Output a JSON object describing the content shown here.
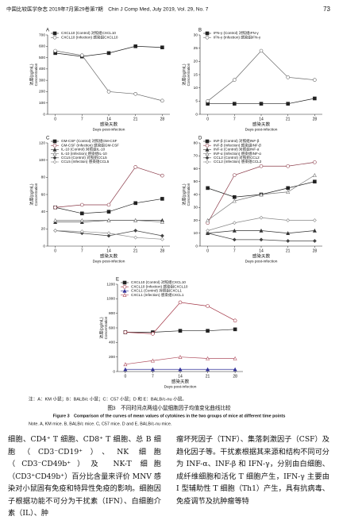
{
  "header": {
    "journal": "中国比较医学杂志 2019年7月第29卷第7期　Chin J Comp Med, July 2019, Vol. 29, No. 7",
    "page": "73"
  },
  "chart_data": [
    {
      "type": "line",
      "label": "A",
      "ylabel": "浓度(pg/mL)",
      "ylabel_en": "Concentration",
      "xlabel": "感染天数",
      "xlabel_en": "Days post-infection",
      "legend": "upper left",
      "x": [
        0,
        7,
        14,
        21,
        28
      ],
      "xlim": [
        -2,
        30
      ],
      "xticks": [
        0,
        7,
        14,
        21,
        28
      ],
      "ylim": [
        0,
        700
      ],
      "yticks": [
        0,
        100,
        200,
        300,
        400,
        500,
        600,
        700
      ],
      "series": [
        {
          "name": "CXCL10 (Control) 对照组CXCL10",
          "color": "#222222",
          "marker": "square",
          "values": [
            540,
            510,
            540,
            600,
            590
          ]
        },
        {
          "name": "CXCL10 (Infection) 感染组CXCL10",
          "color": "#666666",
          "marker": "circle-open",
          "values": [
            560,
            520,
            200,
            180,
            120
          ]
        }
      ]
    },
    {
      "type": "line",
      "label": "B",
      "ylabel": "浓度(pg/mL)",
      "ylabel_en": "Concentration",
      "xlabel": "感染天数",
      "xlabel_en": "Days post-infection",
      "legend": "upper left",
      "x": [
        0,
        7,
        14,
        21,
        28
      ],
      "xlim": [
        -2,
        30
      ],
      "xticks": [
        0,
        7,
        14,
        21,
        28
      ],
      "ylim": [
        0,
        30
      ],
      "yticks": [
        0,
        5,
        10,
        15,
        20,
        25,
        30
      ],
      "series": [
        {
          "name": "IFN-γ (Control) 对照组IFN-γ",
          "color": "#222222",
          "marker": "square",
          "values": [
            4,
            4,
            4,
            4,
            6
          ]
        },
        {
          "name": "IFN-γ (Infection) 感染组IFN-γ",
          "color": "#666666",
          "marker": "circle-open",
          "values": [
            5,
            13,
            24,
            14,
            13
          ]
        }
      ]
    },
    {
      "type": "line",
      "label": "C",
      "ylabel": "浓度(pg/mL)",
      "ylabel_en": "Concentration",
      "xlabel": "感染天数",
      "xlabel_en": "Days post-infection",
      "legend": "upper left",
      "x": [
        0,
        7,
        14,
        21,
        28
      ],
      "xlim": [
        -2,
        30
      ],
      "xticks": [
        0,
        7,
        14,
        21,
        28
      ],
      "ylim": [
        0,
        120
      ],
      "yticks": [
        0,
        20,
        40,
        60,
        80,
        100,
        120
      ],
      "series": [
        {
          "name": "GM-CSF (Control) 对照组GM-CSF",
          "color": "#222222",
          "marker": "square",
          "values": [
            45,
            38,
            40,
            50,
            55
          ]
        },
        {
          "name": "GM-CSF (Infection) 感染组GM-CSF",
          "color": "#8a3a48",
          "marker": "circle-open",
          "values": [
            45,
            48,
            48,
            92,
            82
          ]
        },
        {
          "name": "IL-10 (Control) 对照组IL-10",
          "color": "#333333",
          "marker": "triangle",
          "values": [
            28,
            28,
            30,
            30,
            30
          ]
        },
        {
          "name": "IL-10 (Infection) 感染组IL-10",
          "color": "#777777",
          "marker": "triangle-open",
          "values": [
            30,
            30,
            30,
            30,
            28
          ]
        },
        {
          "name": "CCL5 (Control) 对照组CCL5",
          "color": "#444444",
          "marker": "diamond",
          "values": [
            18,
            15,
            12,
            18,
            12
          ]
        },
        {
          "name": "CCL5 (Infection) 感染组CCL5",
          "color": "#888888",
          "marker": "diamond-open",
          "values": [
            18,
            17,
            15,
            10,
            8
          ]
        }
      ]
    },
    {
      "type": "line",
      "label": "D",
      "ylabel": "浓度(pg/mL)",
      "ylabel_en": "Concentration",
      "xlabel": "感染天数",
      "xlabel_en": "Days post-infection",
      "legend": "upper left",
      "x": [
        0,
        7,
        14,
        21,
        28
      ],
      "xlim": [
        -2,
        30
      ],
      "xticks": [
        0,
        7,
        14,
        21,
        28
      ],
      "ylim": [
        0,
        80
      ],
      "yticks": [
        0,
        10,
        20,
        30,
        40,
        50,
        60,
        70,
        80
      ],
      "series": [
        {
          "name": "INF-β (Control) 对照组INF-β",
          "color": "#222222",
          "marker": "square",
          "values": [
            45,
            38,
            40,
            45,
            50
          ]
        },
        {
          "name": "INF-β (Infection) 感染组INF-β",
          "color": "#8a3a48",
          "marker": "circle-open",
          "values": [
            18,
            55,
            62,
            62,
            65
          ]
        },
        {
          "name": "INF-α (Control) 对照组INF-α",
          "color": "#333333",
          "marker": "triangle",
          "values": [
            10,
            12,
            12,
            10,
            12
          ]
        },
        {
          "name": "INF-α (Infection) 感染组INF-α",
          "color": "#777777",
          "marker": "triangle-open",
          "values": [
            20,
            35,
            40,
            42,
            55
          ]
        },
        {
          "name": "CCL2 (Control) 对照组CCL2",
          "color": "#444444",
          "marker": "diamond",
          "values": [
            10,
            5,
            5,
            4,
            4
          ]
        },
        {
          "name": "CCL2 (Infection) 感染组CCL2",
          "color": "#888888",
          "marker": "diamond-open",
          "values": [
            12,
            18,
            22,
            20,
            20
          ]
        }
      ]
    },
    {
      "type": "line",
      "label": "E",
      "ylabel": "浓度(pg/mL)",
      "ylabel_en": "Concentration",
      "xlabel": "感染天数",
      "xlabel_en": "Days post-infection",
      "legend": "upper left",
      "x": [
        0,
        7,
        14,
        21,
        28
      ],
      "xlim": [
        -2,
        30
      ],
      "xticks": [
        0,
        7,
        14,
        21,
        28
      ],
      "ylim": [
        0,
        1200
      ],
      "yticks": [
        0,
        200,
        400,
        600,
        800,
        1000,
        1200
      ],
      "series": [
        {
          "name": "CXCL10 (Control) 对照组CXCL10",
          "color": "#222222",
          "marker": "square",
          "values": [
            540,
            540,
            560,
            560,
            580
          ]
        },
        {
          "name": "CXCL10 (Infection) 感染组CXCL10",
          "color": "#a03040",
          "marker": "circle-open",
          "values": [
            540,
            520,
            950,
            900,
            700
          ]
        },
        {
          "name": "CXCL1 (Control) 对照组CXCL1",
          "color": "#333399",
          "marker": "triangle",
          "values": [
            30,
            30,
            30,
            30,
            30
          ]
        },
        {
          "name": "CXCL1 (Infection) 感染组CXCL1",
          "color": "#b05060",
          "marker": "triangle-open",
          "values": [
            100,
            150,
            200,
            180,
            180
          ]
        }
      ]
    }
  ],
  "figure": {
    "note_zh": "注：A：KM 小鼠；B：BALB/c 小鼠；C：C57 小鼠；D 和 E：BALB/c-nu 小鼠。",
    "caption_zh": "图3　不同时间点两组小鼠细胞因子均值变化曲线比较",
    "caption_en": "Figure 3　Comparison of the curves of mean values of cytokines in the two groups of mice at different time points",
    "note_en": "Note. A, KM mice. B, BALB/c mice. C, C57 mice. D and E, BALB/c-nu mice."
  },
  "body": {
    "left": "细胞、CD4⁺ T 细胞、CD8⁺ T 细胞、总 B 细胞（CD3⁻CD19⁺）、NK 细胞（CD3⁻CD49b⁺）及 NK-T 细胞（CD3⁺CD49b⁺）百分比含量来评价 MNV 感染对小鼠固有免疫和特异性免疫的影响。细胞因子根据功能不可分为干扰素（IFN）、白细胞介素（IL）、肿",
    "right": "瘤坏死因子（TNF）、集落刺激因子（CSF）及趋化因子等。干扰素根据其来源和结构不同可分为 INF-α、INF-β 和 IFN-γ，分别由白细胞、成纤维细胞和活化 T 细胞产生，IFN-γ 主要由 I 型辅助性 T 细胞（Th1）产生，具有抗病毒、免疫调节及抗肿瘤等特"
  }
}
